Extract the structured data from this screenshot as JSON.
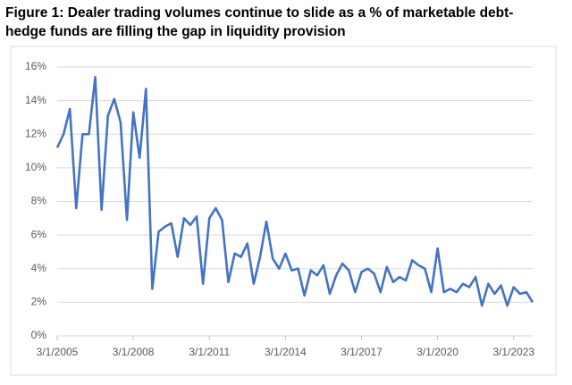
{
  "chart_data": {
    "type": "line",
    "title": "Figure 1: Dealer trading volumes continue to slide as a % of marketable debt-hedge funds are filling the gap in liquidity provision",
    "categories": [
      "3/1/2005",
      null,
      null,
      null,
      null,
      null,
      null,
      null,
      null,
      null,
      null,
      null,
      "3/1/2008",
      null,
      null,
      null,
      null,
      null,
      null,
      null,
      null,
      null,
      null,
      null,
      "3/1/2011",
      null,
      null,
      null,
      null,
      null,
      null,
      null,
      null,
      null,
      null,
      null,
      "3/1/2014",
      null,
      null,
      null,
      null,
      null,
      null,
      null,
      null,
      null,
      null,
      null,
      "3/1/2017",
      null,
      null,
      null,
      null,
      null,
      null,
      null,
      null,
      null,
      null,
      null,
      "3/1/2020",
      null,
      null,
      null,
      null,
      null,
      null,
      null,
      null,
      null,
      null,
      null,
      "3/1/2023",
      null,
      null,
      null
    ],
    "values": [
      11.2,
      12.0,
      13.5,
      7.6,
      12.0,
      12.0,
      15.4,
      7.5,
      13.1,
      14.1,
      12.7,
      6.9,
      13.3,
      10.6,
      14.7,
      2.8,
      6.2,
      6.5,
      6.7,
      4.7,
      7.0,
      6.6,
      7.1,
      3.1,
      7.0,
      7.6,
      6.9,
      3.2,
      4.9,
      4.7,
      5.5,
      3.1,
      4.7,
      6.8,
      4.6,
      4.0,
      4.9,
      3.9,
      4.0,
      2.4,
      3.9,
      3.6,
      4.2,
      2.5,
      3.6,
      4.3,
      3.9,
      2.6,
      3.8,
      4.0,
      3.7,
      2.6,
      4.1,
      3.2,
      3.5,
      3.3,
      4.5,
      4.2,
      4.0,
      2.6,
      5.2,
      2.6,
      2.8,
      2.6,
      3.1,
      2.9,
      3.5,
      1.8,
      3.1,
      2.5,
      3.0,
      1.8,
      2.9,
      2.5,
      2.6,
      2.0
    ],
    "color": "#4472c4",
    "ylim": [
      0,
      16
    ],
    "yticks": [
      {
        "value": 0,
        "label": "0%"
      },
      {
        "value": 2,
        "label": "2%"
      },
      {
        "value": 4,
        "label": "4%"
      },
      {
        "value": 6,
        "label": "6%"
      },
      {
        "value": 8,
        "label": "8%"
      },
      {
        "value": 10,
        "label": "10%"
      },
      {
        "value": 12,
        "label": "12%"
      },
      {
        "value": 14,
        "label": "14%"
      },
      {
        "value": 16,
        "label": "16%"
      }
    ],
    "grid": true
  }
}
